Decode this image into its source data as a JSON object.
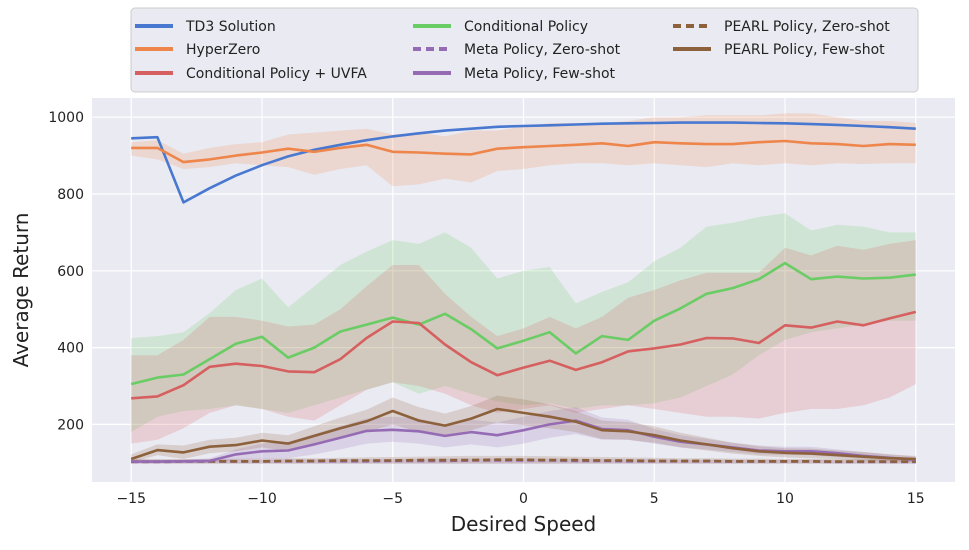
{
  "chart_data": {
    "type": "line",
    "title": "",
    "xlabel": "Desired Speed",
    "ylabel": "Average Return",
    "xlim": [
      -16.5,
      16.5
    ],
    "ylim": [
      50,
      1050
    ],
    "xticks": [
      -15,
      -10,
      -5,
      0,
      5,
      10,
      15
    ],
    "xtick_labels": [
      "−15",
      "−10",
      "−5",
      "0",
      "5",
      "10",
      "15"
    ],
    "yticks": [
      200,
      400,
      600,
      800,
      1000
    ],
    "ytick_labels": [
      "200",
      "400",
      "600",
      "800",
      "1000"
    ],
    "grid": true,
    "legend_position": "top",
    "x": [
      -15,
      -14,
      -13,
      -12,
      -11,
      -10,
      -9,
      -8,
      -7,
      -6,
      -5,
      -4,
      -3,
      -2,
      -1,
      0,
      1,
      2,
      3,
      4,
      5,
      6,
      7,
      8,
      9,
      10,
      11,
      12,
      13,
      14,
      15
    ],
    "series": [
      {
        "name": "TD3 Solution",
        "color": "#4878d0",
        "dashed": false,
        "values": [
          945,
          948,
          778,
          815,
          848,
          875,
          898,
          915,
          928,
          940,
          950,
          958,
          965,
          970,
          975,
          977,
          979,
          981,
          983,
          984,
          985,
          986,
          986,
          986,
          985,
          984,
          982,
          980,
          977,
          974,
          970
        ],
        "lower": null,
        "upper": null
      },
      {
        "name": "HyperZero",
        "color": "#ee854a",
        "dashed": false,
        "values": [
          920,
          920,
          883,
          890,
          900,
          908,
          918,
          910,
          920,
          928,
          910,
          908,
          905,
          903,
          918,
          922,
          925,
          928,
          932,
          925,
          935,
          932,
          930,
          930,
          935,
          938,
          932,
          930,
          925,
          930,
          928
        ],
        "lower": [
          900,
          890,
          865,
          870,
          880,
          875,
          870,
          850,
          865,
          875,
          820,
          825,
          840,
          830,
          860,
          865,
          875,
          880,
          880,
          875,
          880,
          875,
          870,
          880,
          875,
          880,
          875,
          880,
          878,
          880,
          880
        ],
        "upper": [
          935,
          940,
          905,
          920,
          930,
          935,
          955,
          960,
          965,
          970,
          955,
          960,
          950,
          965,
          965,
          975,
          985,
          985,
          985,
          990,
          1000,
          1000,
          1005,
          1005,
          1005,
          1010,
          1010,
          1000,
          990,
          990,
          985
        ]
      },
      {
        "name": "Conditional Policy",
        "color": "#6acc64",
        "dashed": false,
        "values": [
          305,
          322,
          330,
          370,
          410,
          428,
          374,
          400,
          442,
          460,
          478,
          460,
          488,
          448,
          398,
          418,
          440,
          385,
          430,
          420,
          470,
          502,
          540,
          555,
          578,
          620,
          578,
          585,
          580,
          582,
          590
        ],
        "lower": [
          180,
          220,
          235,
          240,
          250,
          240,
          230,
          250,
          270,
          290,
          310,
          280,
          300,
          280,
          260,
          250,
          255,
          240,
          250,
          250,
          255,
          270,
          300,
          330,
          380,
          420,
          440,
          450,
          460,
          470,
          470
        ],
        "upper": [
          425,
          430,
          440,
          490,
          550,
          580,
          505,
          560,
          615,
          650,
          680,
          670,
          700,
          660,
          580,
          600,
          610,
          515,
          545,
          570,
          625,
          660,
          715,
          725,
          740,
          750,
          705,
          720,
          715,
          700,
          700
        ]
      },
      {
        "name": "Meta Policy, Zero-shot",
        "color": "#956cb4",
        "dashed": true,
        "values": [
          102,
          102,
          103,
          103,
          103,
          103,
          104,
          104,
          104,
          104,
          105,
          105,
          105,
          106,
          106,
          106,
          106,
          105,
          105,
          104,
          104,
          104,
          104,
          103,
          103,
          103,
          103,
          102,
          102,
          102,
          102
        ],
        "lower": [
          98,
          98,
          98,
          98,
          98,
          98,
          98,
          98,
          98,
          98,
          98,
          98,
          98,
          98,
          98,
          98,
          98,
          98,
          98,
          98,
          98,
          98,
          98,
          98,
          98,
          98,
          98,
          98,
          98,
          98,
          98
        ],
        "upper": [
          108,
          108,
          108,
          108,
          108,
          108,
          109,
          109,
          109,
          110,
          110,
          110,
          111,
          112,
          112,
          112,
          111,
          110,
          110,
          109,
          109,
          108,
          108,
          108,
          108,
          108,
          108,
          107,
          107,
          107,
          107
        ]
      },
      {
        "name": "PEARL Policy, Zero-shot",
        "color": "#8c613c",
        "dashed": true,
        "values": [
          103,
          103,
          104,
          104,
          104,
          104,
          105,
          105,
          106,
          106,
          106,
          107,
          107,
          107,
          108,
          108,
          107,
          107,
          106,
          106,
          105,
          105,
          105,
          104,
          104,
          104,
          104,
          103,
          103,
          103,
          103
        ],
        "lower": [
          98,
          98,
          98,
          98,
          98,
          98,
          98,
          98,
          98,
          98,
          98,
          98,
          98,
          98,
          98,
          98,
          98,
          98,
          98,
          98,
          98,
          98,
          98,
          98,
          98,
          98,
          98,
          98,
          98,
          98,
          98
        ],
        "upper": [
          110,
          110,
          110,
          110,
          111,
          111,
          112,
          112,
          113,
          114,
          115,
          116,
          117,
          118,
          118,
          118,
          117,
          116,
          115,
          114,
          113,
          112,
          112,
          111,
          111,
          110,
          110,
          110,
          110,
          110,
          110
        ]
      },
      {
        "name": "Conditional Policy + UVFA",
        "color": "#d65f5f",
        "dashed": false,
        "values": [
          268,
          273,
          302,
          350,
          358,
          352,
          338,
          336,
          370,
          425,
          468,
          464,
          408,
          362,
          328,
          348,
          366,
          342,
          362,
          390,
          398,
          408,
          425,
          424,
          412,
          458,
          452,
          468,
          458,
          476,
          493
        ],
        "lower": [
          150,
          160,
          190,
          230,
          250,
          240,
          220,
          210,
          250,
          290,
          310,
          300,
          280,
          250,
          230,
          240,
          250,
          230,
          240,
          250,
          240,
          230,
          220,
          220,
          215,
          230,
          240,
          240,
          250,
          270,
          305
        ],
        "upper": [
          380,
          380,
          420,
          480,
          480,
          470,
          455,
          460,
          500,
          560,
          615,
          615,
          540,
          480,
          430,
          450,
          480,
          450,
          480,
          530,
          550,
          575,
          595,
          595,
          595,
          660,
          640,
          665,
          655,
          670,
          680
        ]
      },
      {
        "name": "Meta Policy, Few-shot",
        "color": "#956cb4",
        "dashed": false,
        "values": [
          103,
          103,
          104,
          105,
          122,
          130,
          132,
          148,
          165,
          183,
          186,
          182,
          170,
          180,
          172,
          185,
          200,
          210,
          188,
          185,
          168,
          155,
          148,
          140,
          132,
          130,
          130,
          125,
          118,
          113,
          108
        ],
        "lower": [
          100,
          100,
          100,
          100,
          108,
          110,
          112,
          122,
          135,
          150,
          155,
          150,
          140,
          148,
          140,
          150,
          165,
          175,
          160,
          160,
          150,
          140,
          135,
          128,
          122,
          120,
          120,
          115,
          110,
          106,
          102
        ],
        "upper": [
          107,
          107,
          108,
          112,
          135,
          150,
          155,
          175,
          195,
          215,
          220,
          215,
          200,
          212,
          205,
          220,
          235,
          245,
          218,
          212,
          188,
          172,
          162,
          152,
          145,
          142,
          142,
          135,
          128,
          122,
          116
        ]
      },
      {
        "name": "PEARL Policy, Few-shot",
        "color": "#8c613c",
        "dashed": false,
        "values": [
          110,
          133,
          127,
          142,
          146,
          158,
          150,
          170,
          190,
          208,
          235,
          210,
          197,
          215,
          240,
          230,
          220,
          207,
          185,
          182,
          172,
          158,
          148,
          138,
          130,
          126,
          124,
          120,
          116,
          112,
          110
        ],
        "lower": [
          100,
          120,
          110,
          125,
          130,
          140,
          130,
          145,
          165,
          180,
          200,
          180,
          170,
          185,
          205,
          198,
          190,
          180,
          162,
          160,
          152,
          140,
          132,
          124,
          118,
          114,
          112,
          110,
          106,
          104,
          102
        ],
        "upper": [
          122,
          148,
          145,
          160,
          165,
          178,
          172,
          195,
          218,
          238,
          270,
          245,
          228,
          248,
          275,
          265,
          252,
          235,
          210,
          206,
          195,
          178,
          165,
          152,
          143,
          138,
          137,
          132,
          128,
          122,
          118
        ]
      }
    ],
    "legend_columns": [
      [
        "TD3 Solution",
        "HyperZero",
        "Conditional Policy + UVFA"
      ],
      [
        "Conditional Policy",
        "Meta Policy, Zero-shot",
        "Meta Policy, Few-shot"
      ],
      [
        "PEARL Policy, Zero-shot",
        "PEARL Policy, Few-shot"
      ]
    ]
  }
}
